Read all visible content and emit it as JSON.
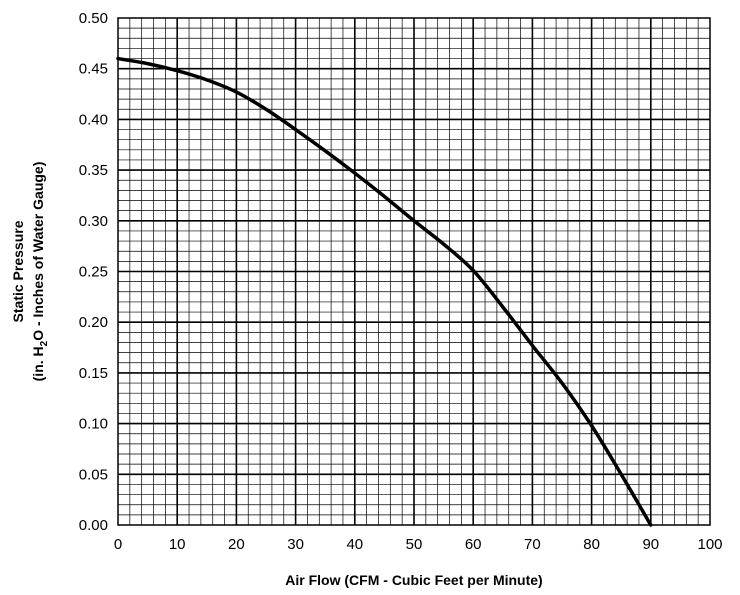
{
  "chart_data": {
    "type": "line",
    "xlabel": "Air Flow  (CFM - Cubic Feet per Minute)",
    "ylabel_line1": "Static Pressure",
    "ylabel_line2_prefix": "(in. H",
    "ylabel_line2_sub": "2",
    "ylabel_line2_suffix": "O - Inches of Water Gauge)",
    "xlim": [
      0,
      100
    ],
    "ylim": [
      0,
      0.5
    ],
    "x_major_step": 10,
    "y_major_step": 0.05,
    "x_minor_divisions": 5,
    "y_minor_divisions": 5,
    "grid": true,
    "x_ticks": [
      "0",
      "10",
      "20",
      "30",
      "40",
      "50",
      "60",
      "70",
      "80",
      "90",
      "100"
    ],
    "y_ticks": [
      "0.00",
      "0.05",
      "0.10",
      "0.15",
      "0.20",
      "0.25",
      "0.30",
      "0.35",
      "0.40",
      "0.45",
      "0.50"
    ],
    "series": [
      {
        "color": "#000000",
        "x": [
          0,
          5,
          10,
          15,
          20,
          25,
          30,
          35,
          40,
          45,
          50,
          55,
          60,
          65,
          70,
          75,
          80,
          85,
          90
        ],
        "y": [
          0.46,
          0.455,
          0.448,
          0.439,
          0.427,
          0.41,
          0.39,
          0.369,
          0.347,
          0.324,
          0.3,
          0.277,
          0.251,
          0.215,
          0.177,
          0.14,
          0.098,
          0.05,
          0.0
        ]
      }
    ]
  }
}
